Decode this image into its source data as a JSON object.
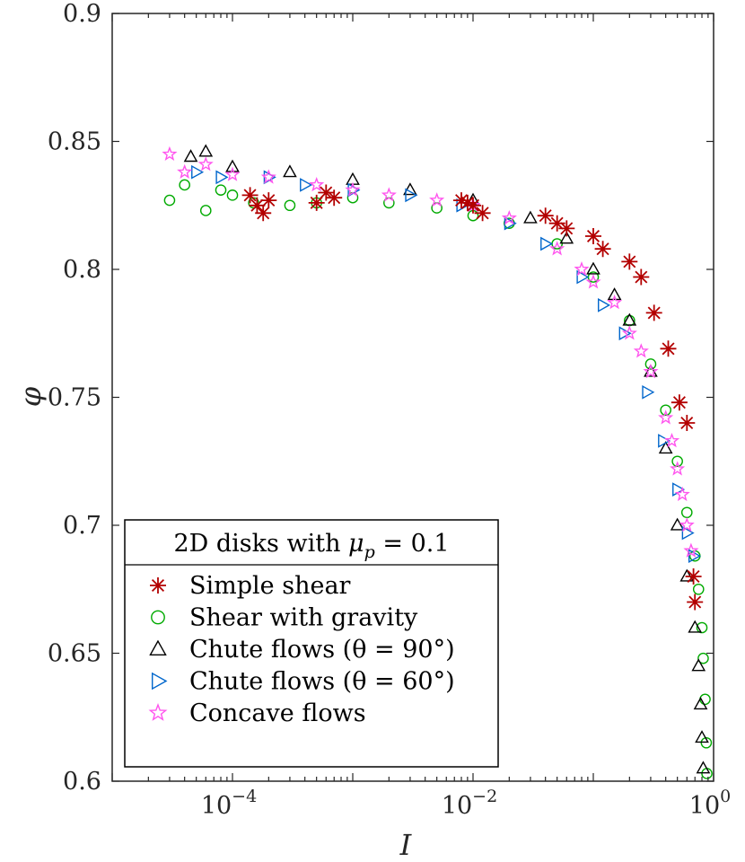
{
  "chart_data": {
    "type": "scatter",
    "title": "",
    "xlabel": "I",
    "ylabel": "φ",
    "xscale": "log",
    "xlim": [
      1e-05,
      1
    ],
    "ylim": [
      0.6,
      0.9
    ],
    "x_ticks": [
      {
        "value": 0.0001,
        "base": "10",
        "exp": "−4"
      },
      {
        "value": 0.01,
        "base": "10",
        "exp": "−2"
      },
      {
        "value": 1,
        "base": "10",
        "exp": "0"
      }
    ],
    "y_ticks": [
      {
        "value": 0.6,
        "label": "0.6"
      },
      {
        "value": 0.65,
        "label": "0.65"
      },
      {
        "value": 0.7,
        "label": "0.7"
      },
      {
        "value": 0.75,
        "label": "0.75"
      },
      {
        "value": 0.8,
        "label": "0.8"
      },
      {
        "value": 0.85,
        "label": "0.85"
      },
      {
        "value": 0.9,
        "label": "0.9"
      }
    ],
    "legend": {
      "title": "2D disks with μp = 0.1",
      "title_parts": {
        "pre": "2D disks with ",
        "mu": "μ",
        "sub": "p",
        "post": " = 0.1"
      },
      "location": "bottom-left"
    },
    "series": [
      {
        "name": "Simple shear",
        "marker": "asterisk",
        "color": "#b30000",
        "x": [
          0.00014,
          0.00016,
          0.00018,
          0.0002,
          0.0005,
          0.0006,
          0.0007,
          0.008,
          0.009,
          0.01,
          0.012,
          0.04,
          0.05,
          0.06,
          0.1,
          0.12,
          0.2,
          0.25,
          0.32,
          0.42,
          0.52,
          0.6,
          0.68,
          0.7
        ],
        "y": [
          0.829,
          0.825,
          0.822,
          0.827,
          0.826,
          0.83,
          0.828,
          0.827,
          0.826,
          0.825,
          0.822,
          0.821,
          0.818,
          0.816,
          0.813,
          0.808,
          0.803,
          0.797,
          0.783,
          0.769,
          0.748,
          0.74,
          0.68,
          0.67
        ]
      },
      {
        "name": "Shear with gravity",
        "marker": "circle",
        "color": "#00aa00",
        "x": [
          3e-05,
          4e-05,
          6e-05,
          8e-05,
          0.0001,
          0.00015,
          0.0003,
          0.0005,
          0.001,
          0.002,
          0.005,
          0.01,
          0.02,
          0.05,
          0.1,
          0.2,
          0.3,
          0.4,
          0.5,
          0.6,
          0.7,
          0.75,
          0.8,
          0.82,
          0.85,
          0.87,
          0.88
        ],
        "y": [
          0.827,
          0.833,
          0.823,
          0.831,
          0.829,
          0.826,
          0.825,
          0.826,
          0.828,
          0.826,
          0.824,
          0.821,
          0.818,
          0.81,
          0.797,
          0.78,
          0.763,
          0.745,
          0.725,
          0.705,
          0.688,
          0.675,
          0.66,
          0.648,
          0.632,
          0.615,
          0.603
        ]
      },
      {
        "name": "Chute flows (θ = 90°)",
        "marker": "triangle-up",
        "color": "#000000",
        "x": [
          4.5e-05,
          6e-05,
          0.0001,
          0.0003,
          0.001,
          0.003,
          0.01,
          0.03,
          0.06,
          0.1,
          0.15,
          0.2,
          0.3,
          0.4,
          0.5,
          0.6,
          0.7,
          0.75,
          0.78,
          0.8,
          0.82
        ],
        "y": [
          0.844,
          0.846,
          0.84,
          0.838,
          0.835,
          0.831,
          0.827,
          0.82,
          0.812,
          0.8,
          0.79,
          0.78,
          0.76,
          0.73,
          0.7,
          0.68,
          0.66,
          0.645,
          0.63,
          0.617,
          0.605
        ]
      },
      {
        "name": "Chute flows (θ = 60°)",
        "marker": "triangle-right",
        "color": "#0066cc",
        "x": [
          5e-05,
          8e-05,
          0.0002,
          0.0004,
          0.001,
          0.003,
          0.008,
          0.02,
          0.04,
          0.08,
          0.12,
          0.18,
          0.28,
          0.38,
          0.5,
          0.6,
          0.68
        ],
        "y": [
          0.838,
          0.836,
          0.836,
          0.833,
          0.831,
          0.829,
          0.825,
          0.818,
          0.81,
          0.797,
          0.786,
          0.775,
          0.752,
          0.733,
          0.714,
          0.697,
          0.688
        ]
      },
      {
        "name": "Concave flows",
        "marker": "pentagram",
        "color": "#ff55ee",
        "x": [
          3e-05,
          4e-05,
          6e-05,
          0.0001,
          0.0002,
          0.0005,
          0.001,
          0.002,
          0.005,
          0.01,
          0.02,
          0.05,
          0.08,
          0.1,
          0.15,
          0.2,
          0.25,
          0.3,
          0.4,
          0.45,
          0.5,
          0.55,
          0.6,
          0.65
        ],
        "y": [
          0.845,
          0.838,
          0.841,
          0.837,
          0.836,
          0.833,
          0.831,
          0.829,
          0.827,
          0.825,
          0.82,
          0.808,
          0.8,
          0.795,
          0.787,
          0.775,
          0.768,
          0.76,
          0.742,
          0.733,
          0.722,
          0.712,
          0.7,
          0.69
        ]
      }
    ]
  }
}
